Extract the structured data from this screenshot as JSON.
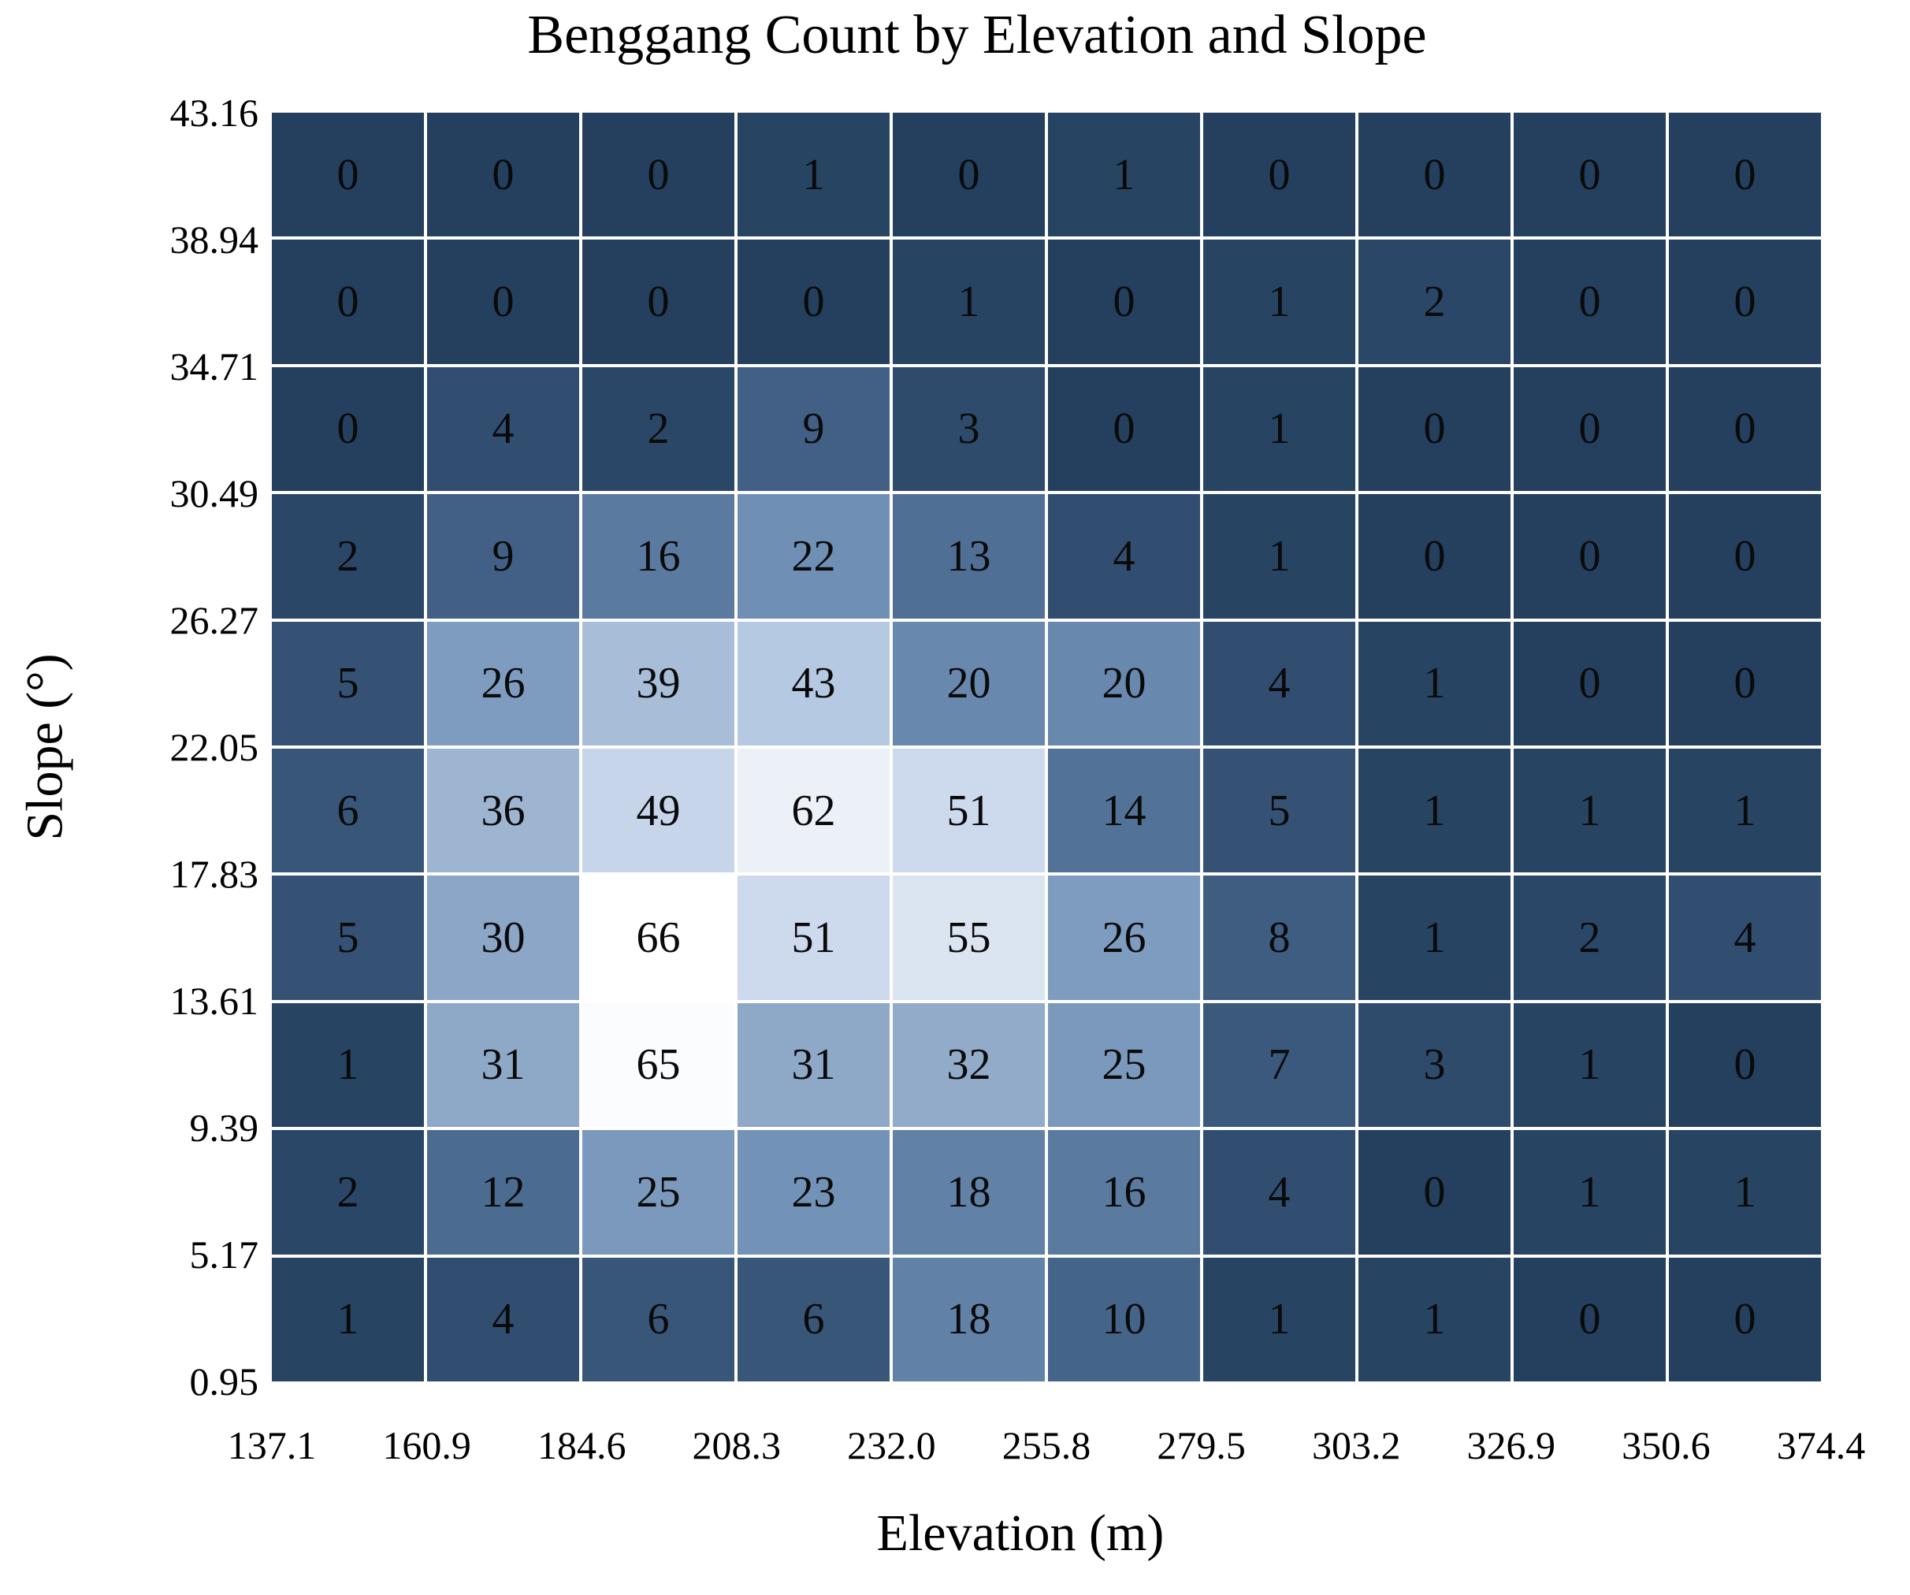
{
  "chart_data": {
    "type": "heatmap",
    "title": "Benggang Count by Elevation and Slope",
    "xlabel": "Elevation (m)",
    "ylabel": "Slope (°)",
    "x_ticks": [
      "137.1",
      "160.9",
      "184.6",
      "208.3",
      "232.0",
      "255.8",
      "279.5",
      "303.2",
      "326.9",
      "350.6",
      "374.4"
    ],
    "y_ticks_top_to_bottom": [
      "43.16",
      "38.94",
      "34.71",
      "30.49",
      "26.27",
      "22.05",
      "17.83",
      "13.61",
      "9.39",
      "5.17",
      "0.95"
    ],
    "values_top_to_bottom": [
      [
        0,
        0,
        0,
        1,
        0,
        1,
        0,
        0,
        0,
        0
      ],
      [
        0,
        0,
        0,
        0,
        1,
        0,
        1,
        2,
        0,
        0
      ],
      [
        0,
        4,
        2,
        9,
        3,
        0,
        1,
        0,
        0,
        0
      ],
      [
        2,
        9,
        16,
        22,
        13,
        4,
        1,
        0,
        0,
        0
      ],
      [
        5,
        26,
        39,
        43,
        20,
        20,
        4,
        1,
        0,
        0
      ],
      [
        6,
        36,
        49,
        62,
        51,
        14,
        5,
        1,
        1,
        1
      ],
      [
        5,
        30,
        66,
        51,
        55,
        26,
        8,
        1,
        2,
        4
      ],
      [
        1,
        31,
        65,
        31,
        32,
        25,
        7,
        3,
        1,
        0
      ],
      [
        2,
        12,
        25,
        23,
        18,
        16,
        4,
        0,
        1,
        1
      ],
      [
        1,
        4,
        6,
        6,
        18,
        10,
        1,
        1,
        0,
        0
      ]
    ],
    "value_range": [
      0,
      66
    ],
    "colormap_stops": [
      {
        "value": 0,
        "color": "#24405e"
      },
      {
        "value": 10,
        "color": "#45648a"
      },
      {
        "value": 20,
        "color": "#6888ae"
      },
      {
        "value": 26,
        "color": "#7e9cbf"
      },
      {
        "value": 32,
        "color": "#91abc9"
      },
      {
        "value": 39,
        "color": "#a8bdd8"
      },
      {
        "value": 43,
        "color": "#b6c9e2"
      },
      {
        "value": 51,
        "color": "#cdd9ec"
      },
      {
        "value": 55,
        "color": "#dbe4f1"
      },
      {
        "value": 62,
        "color": "#ecf1f8"
      },
      {
        "value": 66,
        "color": "#ffffff"
      }
    ],
    "colors": {
      "cell_text": "#0a0a0a",
      "grid_lines": "#ffffff",
      "background": "#ffffff"
    },
    "grid": "white gaps between cells",
    "legend": "none"
  }
}
